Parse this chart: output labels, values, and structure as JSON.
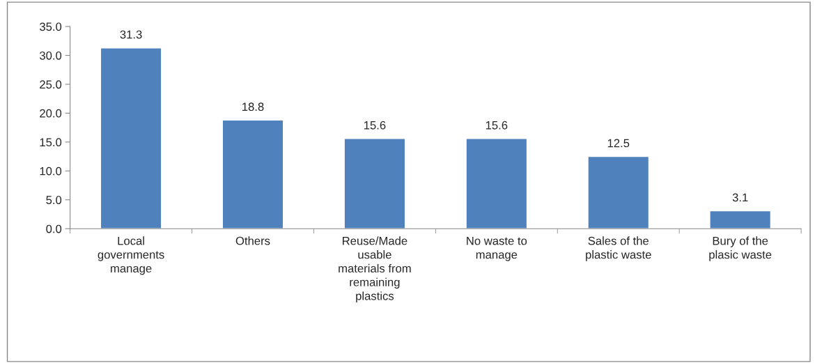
{
  "chart_data": {
    "type": "bar",
    "categories": [
      "Local\ngovernments\nmanage",
      "Others",
      "Reuse/Made\nusable\nmaterials from\nremaining\nplastics",
      "No waste to\nmanage",
      "Sales of the\nplastic waste",
      "Bury of the\nplasic waste"
    ],
    "values": [
      31.3,
      18.8,
      15.6,
      15.6,
      12.5,
      3.1
    ],
    "color": "#4f81bd",
    "ylim": [
      0,
      35
    ],
    "yticks": [
      {
        "value": 0,
        "label": "0.0"
      },
      {
        "value": 5,
        "label": "5.0"
      },
      {
        "value": 10,
        "label": "10.0"
      },
      {
        "value": 15,
        "label": "15.0"
      },
      {
        "value": 20,
        "label": "20.0"
      },
      {
        "value": 25,
        "label": "25.0"
      },
      {
        "value": 30,
        "label": "30.0"
      },
      {
        "value": 35,
        "label": "35.0"
      }
    ],
    "data_labels": true,
    "grid": false,
    "legend": false
  }
}
